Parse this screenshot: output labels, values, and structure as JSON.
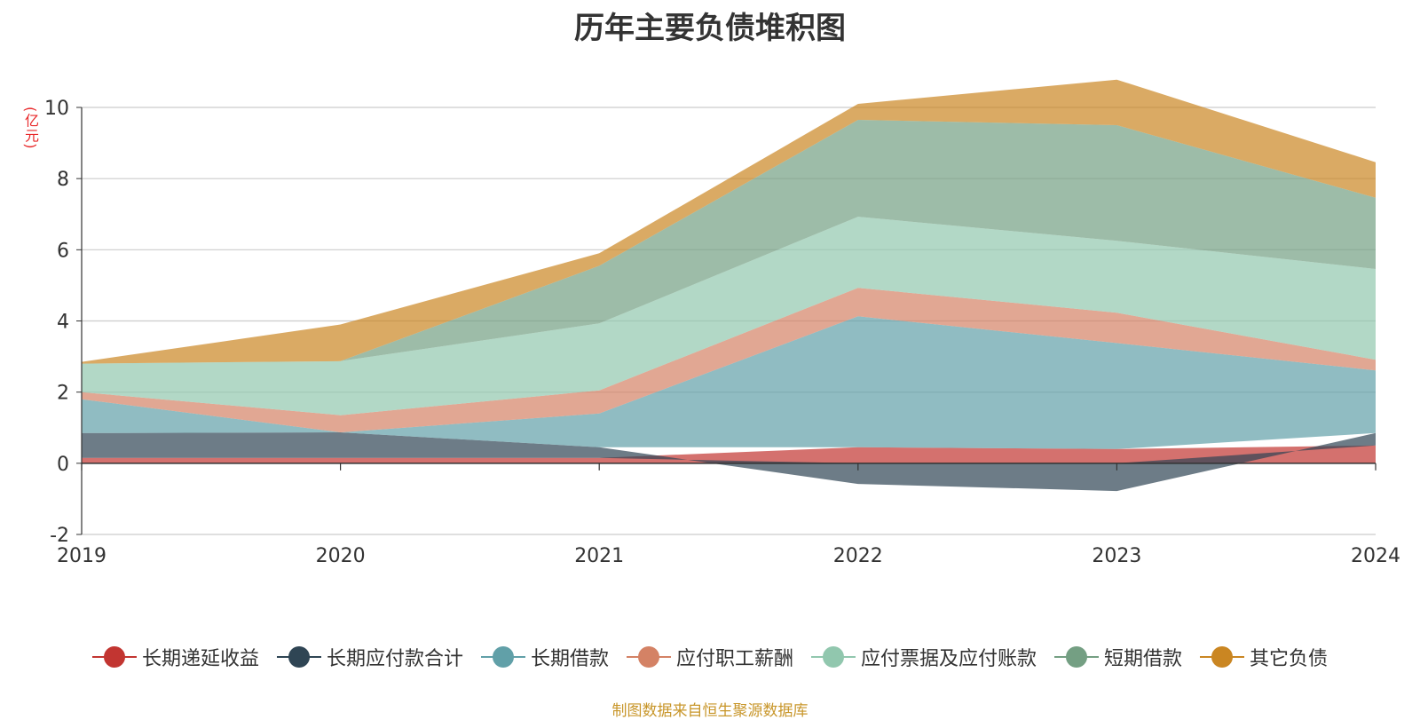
{
  "title": "历年主要负债堆积图",
  "unit_label": "(亿元)",
  "source_text": "制图数据来自恒生聚源数据库",
  "chart_data": {
    "type": "area",
    "stacked": true,
    "categories": [
      "2019",
      "2020",
      "2021",
      "2022",
      "2023",
      "2024"
    ],
    "ylim": [
      -2,
      10
    ],
    "yticks": [
      -2,
      0,
      2,
      4,
      6,
      8,
      10
    ],
    "grid": true,
    "legend_position": "bottom",
    "series": [
      {
        "name": "长期递延收益",
        "color": "#c23531",
        "values": [
          0.15,
          0.15,
          0.15,
          0.45,
          0.4,
          0.5
        ]
      },
      {
        "name": "长期应付款合计",
        "color": "#2f4554",
        "values": [
          0.7,
          0.72,
          0.3,
          -0.58,
          -0.78,
          0.35
        ]
      },
      {
        "name": "长期借款",
        "color": "#61a0a8",
        "values": [
          0.95,
          0.0,
          0.95,
          3.68,
          2.98,
          1.76
        ]
      },
      {
        "name": "应付职工薪酬",
        "color": "#d48265",
        "values": [
          0.2,
          0.48,
          0.65,
          0.8,
          0.85,
          0.3
        ]
      },
      {
        "name": "应付票据及应付账款",
        "color": "#91c7ae",
        "values": [
          0.8,
          1.52,
          1.88,
          2.0,
          2.02,
          2.55
        ]
      },
      {
        "name": "短期借款",
        "color": "#749f83",
        "values": [
          0.0,
          0.0,
          1.62,
          2.72,
          3.25,
          2.0
        ]
      },
      {
        "name": "其它负债",
        "color": "#ca8622",
        "values": [
          0.05,
          1.03,
          0.35,
          0.45,
          1.28,
          1.0
        ]
      }
    ]
  }
}
